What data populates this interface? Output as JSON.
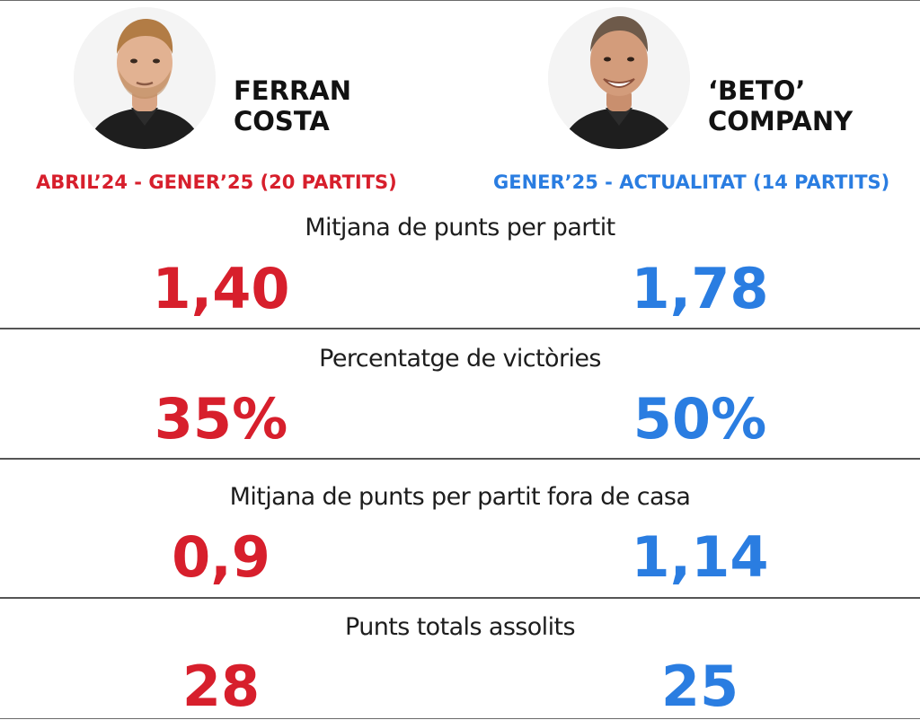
{
  "coaches": [
    {
      "name_line1": "FERRAN",
      "name_line2": "COSTA",
      "period": "ABRIL’24 - GENER’25 (20 PARTITS)",
      "color": "#d71f2c"
    },
    {
      "name_line1": "‘BETO’",
      "name_line2": "COMPANY",
      "period": "GENER’25 - ACTUALITAT (14 PARTITS)",
      "color": "#2a7de1"
    }
  ],
  "stats": [
    {
      "label": "Mitjana de punts per partit",
      "left": "1,40",
      "right": "1,78"
    },
    {
      "label": "Percentatge de victòries",
      "left": "35%",
      "right": "50%"
    },
    {
      "label": "Mitjana de punts per partit fora de casa",
      "left": "0,9",
      "right": "1,14"
    },
    {
      "label": "Punts totals assolits",
      "left": "28",
      "right": "25"
    }
  ]
}
